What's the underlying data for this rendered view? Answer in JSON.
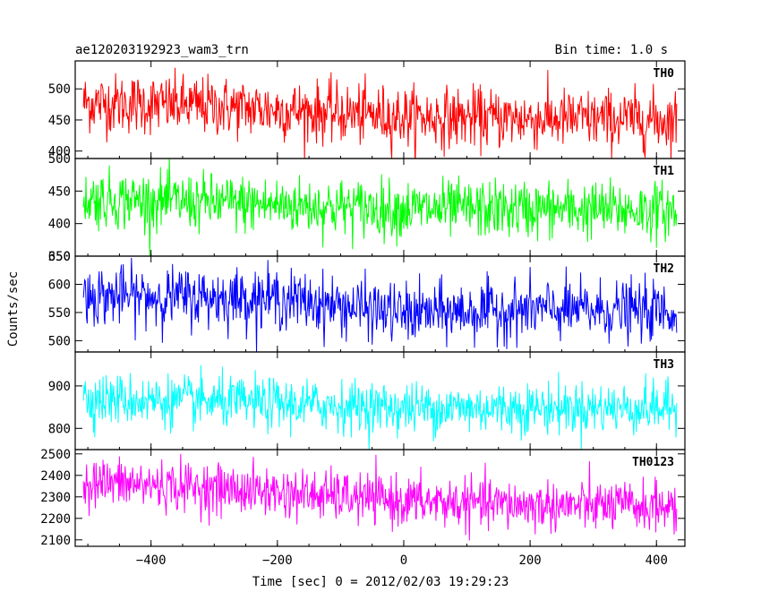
{
  "header": {
    "title": "ae120203192923_wam3_trn",
    "bin_time": "Bin time: 1.0 s"
  },
  "chart_data": {
    "type": "line",
    "xlabel": "Time [sec] 0 = 2012/02/03 19:29:23",
    "ylabel": "Counts/sec",
    "xlim": [
      -520,
      445
    ],
    "x_ticks": [
      -400,
      -200,
      0,
      200,
      400
    ],
    "x_data_range": [
      -507,
      432
    ],
    "bin_seconds": 1.0,
    "panels": [
      {
        "name": "TH0",
        "color": "#ff0000",
        "ylim": [
          388,
          545
        ],
        "y_ticks": [
          400,
          450,
          500
        ],
        "trend": [
          [
            -507,
            478
          ],
          [
            -300,
            472
          ],
          [
            0,
            455
          ],
          [
            200,
            452
          ],
          [
            432,
            450
          ]
        ],
        "noise_sd": 24
      },
      {
        "name": "TH1",
        "color": "#00ff00",
        "ylim": [
          350,
          500
        ],
        "y_ticks": [
          350,
          400,
          450,
          500
        ],
        "trend": [
          [
            -507,
            438
          ],
          [
            -300,
            432
          ],
          [
            0,
            422
          ],
          [
            200,
            422
          ],
          [
            432,
            420
          ]
        ],
        "noise_sd": 22
      },
      {
        "name": "TH2",
        "color": "#0000ff",
        "ylim": [
          480,
          650
        ],
        "y_ticks": [
          500,
          550,
          600,
          650
        ],
        "trend": [
          [
            -507,
            580
          ],
          [
            -200,
            575
          ],
          [
            0,
            548
          ],
          [
            200,
            555
          ],
          [
            432,
            552
          ]
        ],
        "noise_sd": 26
      },
      {
        "name": "TH3",
        "color": "#00ffff",
        "ylim": [
          750,
          980
        ],
        "y_ticks": [
          800,
          900
        ],
        "trend": [
          [
            -507,
            870
          ],
          [
            -300,
            862
          ],
          [
            0,
            848
          ],
          [
            200,
            848
          ],
          [
            432,
            848
          ]
        ],
        "noise_sd": 30
      },
      {
        "name": "TH0123",
        "color": "#ff00ff",
        "ylim": [
          2070,
          2520
        ],
        "y_ticks": [
          2100,
          2200,
          2300,
          2400,
          2500
        ],
        "trend": [
          [
            -507,
            2370
          ],
          [
            -300,
            2340
          ],
          [
            0,
            2280
          ],
          [
            200,
            2260
          ],
          [
            432,
            2255
          ]
        ],
        "noise_sd": 58
      }
    ]
  }
}
